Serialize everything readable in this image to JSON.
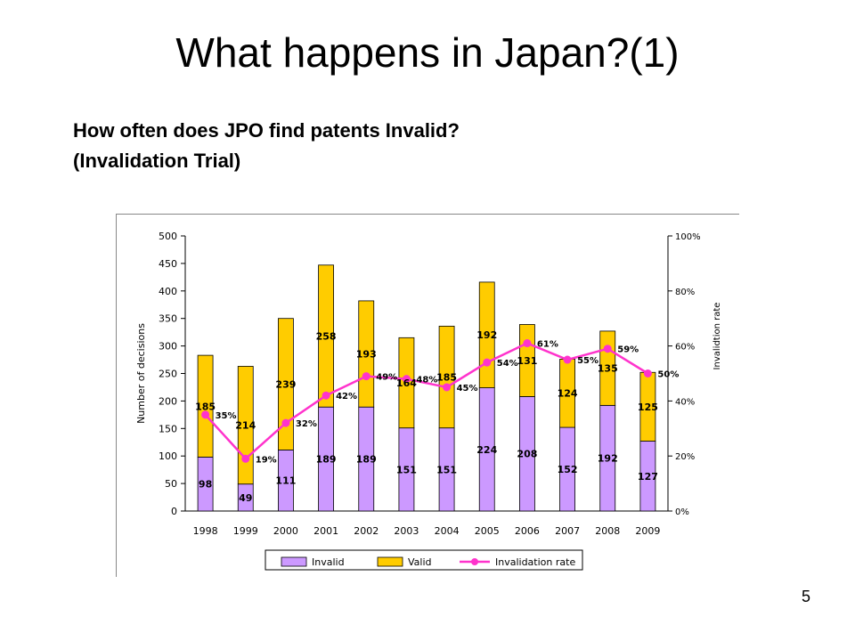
{
  "slide": {
    "title": "What happens in Japan?(1)",
    "subtitle_line1": "How often does JPO find patents Invalid?",
    "subtitle_line2": "(Invalidation Trial)",
    "page_number": "5"
  },
  "chart_data": {
    "type": "bar",
    "stacked": true,
    "categories": [
      "1998",
      "1999",
      "2000",
      "2001",
      "2002",
      "2003",
      "2004",
      "2005",
      "2006",
      "2007",
      "2008",
      "2009"
    ],
    "series": [
      {
        "name": "Invalid",
        "kind": "bar",
        "color": "#cc99ff",
        "values": [
          98,
          49,
          111,
          189,
          189,
          151,
          151,
          224,
          208,
          152,
          192,
          127
        ],
        "labels": [
          "98",
          "49",
          "111",
          "189",
          "189",
          "151",
          "151",
          "224",
          "208",
          "152",
          "192",
          "127"
        ]
      },
      {
        "name": "Valid",
        "kind": "bar",
        "color": "#ffcc00",
        "values": [
          185,
          214,
          239,
          258,
          193,
          164,
          185,
          192,
          131,
          124,
          135,
          125
        ],
        "labels": [
          "185",
          "214",
          "239",
          "258",
          "193",
          "164",
          "185",
          "192",
          "131",
          "124",
          "135",
          "125"
        ]
      },
      {
        "name": "Invalidation rate",
        "kind": "line",
        "axis": "right",
        "color": "#ff33cc",
        "values": [
          35,
          19,
          32,
          42,
          49,
          48,
          45,
          54,
          61,
          55,
          59,
          50
        ],
        "labels": [
          "35%",
          "19%",
          "32%",
          "42%",
          "49%",
          "48%",
          "45%",
          "54%",
          "61%",
          "55%",
          "59%",
          "50%"
        ]
      }
    ],
    "ylabel": "Number of decisions",
    "y2label": "Invalidtion rate",
    "ylim": [
      0,
      500
    ],
    "yticks": [
      "0",
      "50",
      "100",
      "150",
      "200",
      "250",
      "300",
      "350",
      "400",
      "450",
      "500"
    ],
    "y2lim": [
      0,
      100
    ],
    "y2ticks": [
      "0%",
      "20%",
      "40%",
      "60%",
      "80%",
      "100%"
    ],
    "legend_position": "bottom",
    "grid": false
  }
}
